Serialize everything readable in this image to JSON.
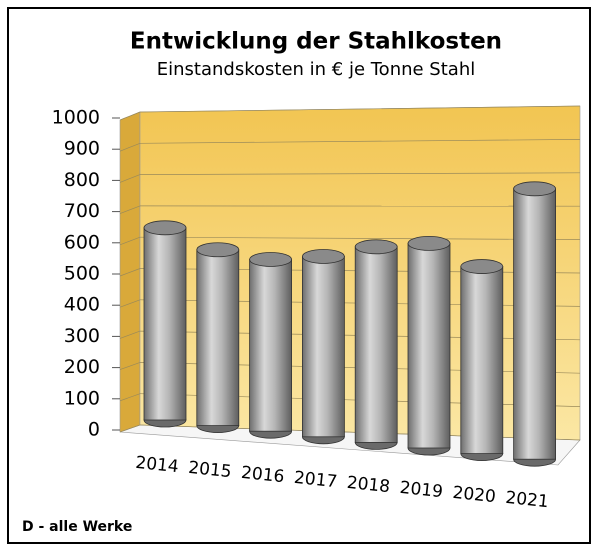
{
  "chart_data": {
    "type": "bar3d",
    "title": "Entwicklung der Stahlkosten",
    "subtitle": "Einstandskosten in € je Tonne Stahl",
    "categories": [
      "2014",
      "2015",
      "2016",
      "2017",
      "2018",
      "2019",
      "2020",
      "2021"
    ],
    "values": [
      620,
      560,
      540,
      560,
      600,
      620,
      560,
      800
    ],
    "color": "#a6a6a6",
    "ylim": [
      0,
      1000
    ],
    "yticks": [
      0,
      100,
      200,
      300,
      400,
      500,
      600,
      700,
      800,
      900,
      1000
    ],
    "grid": true,
    "footnote": "D - alle Werke"
  }
}
